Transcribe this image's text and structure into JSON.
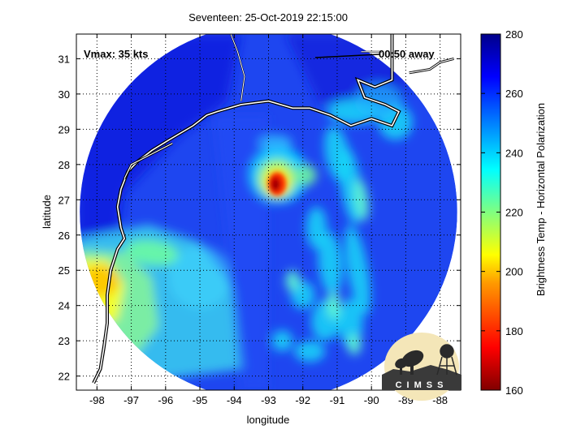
{
  "chart_data": {
    "type": "heatmap",
    "title": "Seventeen: 25-Oct-2019 22:15:00",
    "xlabel": "longitude",
    "ylabel": "latitude",
    "xlim": [
      -98.6,
      -87.4
    ],
    "ylim": [
      21.6,
      31.7
    ],
    "x_ticks": [
      -98,
      -97,
      -96,
      -95,
      -94,
      -93,
      -92,
      -91,
      -90,
      -89,
      -88
    ],
    "y_ticks": [
      22,
      23,
      24,
      25,
      26,
      27,
      28,
      29,
      30,
      31
    ],
    "grid": "dotted",
    "annotations": {
      "vmax": "Vmax: 35 kts",
      "time_away": "00:50 away"
    },
    "colorbar": {
      "label": "Brightness Temp - Horizontal Polarization",
      "range": [
        160,
        280
      ],
      "ticks": [
        160,
        180,
        200,
        220,
        240,
        260,
        280
      ],
      "colormap": [
        "#800000",
        "#ff0000",
        "#ff8000",
        "#ffff00",
        "#80ff80",
        "#00ffff",
        "#0080ff",
        "#0000ff",
        "#000080"
      ]
    },
    "swath": {
      "center_lon": -93.0,
      "center_lat": 26.65,
      "radius_deg": 5.5
    },
    "storm_center": {
      "lon": -92.75,
      "lat": 27.4,
      "min_temp": 175
    }
  },
  "logo": {
    "text": "CIMSS"
  }
}
